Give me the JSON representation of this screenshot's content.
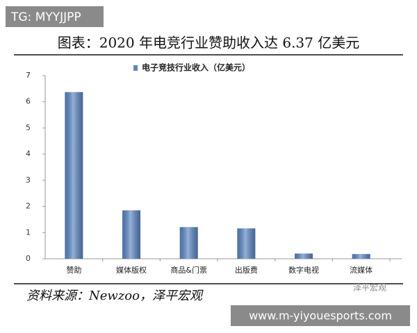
{
  "overlay_top": "TG: MYYJJPP",
  "overlay_bottom": "www.m-yiyouesports.com",
  "watermark": "泽平宏观",
  "chart_data": {
    "type": "bar",
    "title": "图表：2020 年电竞行业赞助收入达 6.37 亿美元",
    "source": "资料来源：Newzoo，泽平宏观",
    "categories": [
      "赞助",
      "媒体版权",
      "商品&门票",
      "出版费",
      "数字电视",
      "流媒体"
    ],
    "series": [
      {
        "name": "电子竞技行业收入（亿美元）",
        "color": "#5b87c5",
        "values": [
          6.37,
          1.85,
          1.21,
          1.16,
          0.2,
          0.18
        ]
      }
    ],
    "ylim": [
      0,
      7
    ],
    "yticks": [
      0,
      1,
      2,
      3,
      4,
      5,
      6,
      7
    ],
    "grid": false
  }
}
